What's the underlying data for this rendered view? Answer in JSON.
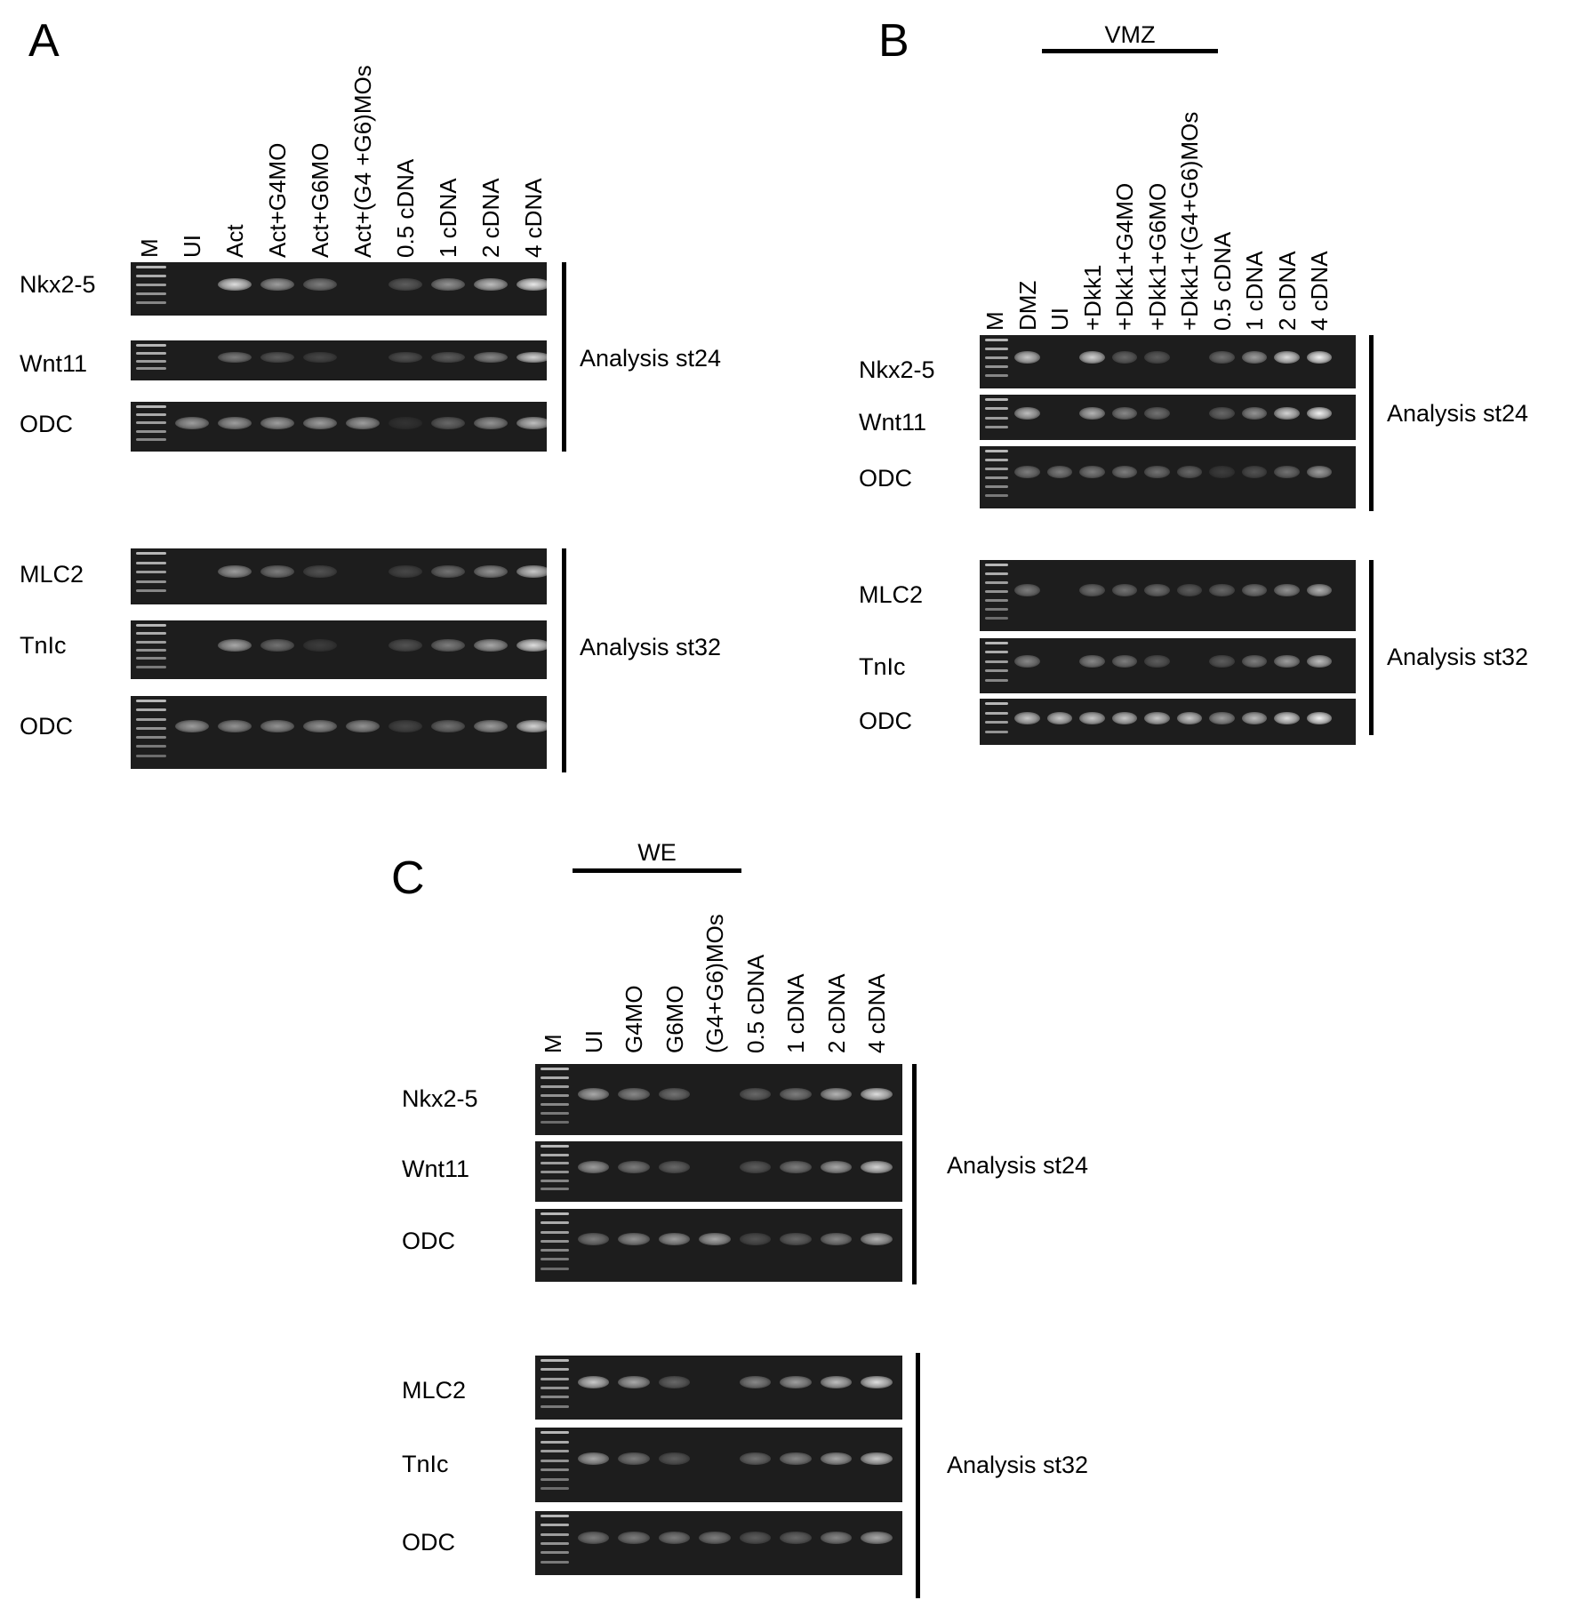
{
  "panels": [
    {
      "id": "A",
      "letter": "A",
      "group": null,
      "lanes": [
        "M",
        "UI",
        "Act",
        "Act+G4MO",
        "Act+G6MO",
        "Act+(G4 +G6)MOs",
        "0.5 cDNA",
        "1 cDNA",
        "2 cDNA",
        "4 cDNA"
      ],
      "sections": [
        {
          "analysis": "Analysis st24",
          "rows": [
            {
              "gene": "Nkx2-5",
              "band_intensity": [
                0,
                0.9,
                0.6,
                0.45,
                0,
                0.3,
                0.55,
                0.75,
                0.95
              ]
            },
            {
              "gene": "Wnt11",
              "band_intensity": [
                0,
                0.45,
                0.3,
                0.2,
                0,
                0.25,
                0.3,
                0.5,
                0.85
              ]
            },
            {
              "gene": "ODC",
              "band_intensity": [
                0.6,
                0.6,
                0.6,
                0.6,
                0.6,
                0.1,
                0.35,
                0.55,
                0.75
              ]
            }
          ]
        },
        {
          "analysis": "Analysis st32",
          "rows": [
            {
              "gene": "MLC2",
              "band_intensity": [
                0,
                0.6,
                0.45,
                0.25,
                0,
                0.2,
                0.4,
                0.55,
                0.8
              ]
            },
            {
              "gene": "TnIc",
              "band_intensity": [
                0,
                0.65,
                0.4,
                0.15,
                0,
                0.25,
                0.45,
                0.65,
                0.9
              ]
            },
            {
              "gene": "ODC",
              "band_intensity": [
                0.6,
                0.55,
                0.55,
                0.55,
                0.55,
                0.2,
                0.4,
                0.6,
                0.85
              ]
            }
          ]
        }
      ]
    },
    {
      "id": "B",
      "letter": "B",
      "group": {
        "label": "VMZ",
        "first_lane": 3,
        "last_lane": 6
      },
      "lanes": [
        "M",
        "DMZ",
        "UI",
        "+Dkk1",
        "+Dkk1+G4MO",
        "+Dkk1+G6MO",
        "+Dkk1+(G4+G6)MOs",
        "0.5 cDNA",
        "1 cDNA",
        "2 cDNA",
        "4 cDNA"
      ],
      "sections": [
        {
          "analysis": "Analysis st24",
          "rows": [
            {
              "gene": "Nkx2-5",
              "band_intensity": [
                0.8,
                0,
                0.85,
                0.35,
                0.3,
                0,
                0.4,
                0.6,
                0.9,
                1
              ]
            },
            {
              "gene": "Wnt11",
              "band_intensity": [
                0.75,
                0,
                0.7,
                0.5,
                0.4,
                0,
                0.35,
                0.55,
                0.85,
                1
              ]
            },
            {
              "gene": "ODC",
              "band_intensity": [
                0.45,
                0.45,
                0.45,
                0.45,
                0.4,
                0.35,
                0.15,
                0.25,
                0.4,
                0.6
              ]
            }
          ]
        },
        {
          "analysis": "Analysis st32",
          "rows": [
            {
              "gene": "MLC2",
              "band_intensity": [
                0.45,
                0,
                0.4,
                0.4,
                0.4,
                0.3,
                0.35,
                0.45,
                0.55,
                0.7
              ]
            },
            {
              "gene": "TnIc",
              "band_intensity": [
                0.5,
                0,
                0.5,
                0.45,
                0.3,
                0,
                0.3,
                0.45,
                0.6,
                0.75
              ]
            },
            {
              "gene": "ODC",
              "band_intensity": [
                0.8,
                0.8,
                0.8,
                0.8,
                0.8,
                0.8,
                0.6,
                0.75,
                0.9,
                1
              ]
            }
          ]
        }
      ]
    },
    {
      "id": "C",
      "letter": "C",
      "group": {
        "label": "WE",
        "first_lane": 1,
        "last_lane": 4
      },
      "lanes": [
        "M",
        "UI",
        "G4MO",
        "G6MO",
        "(G4+G6)MOs",
        "0.5 cDNA",
        "1 cDNA",
        "2 cDNA",
        "4 cDNA"
      ],
      "sections": [
        {
          "analysis": "Analysis st24",
          "rows": [
            {
              "gene": "Nkx2-5",
              "band_intensity": [
                0.65,
                0.5,
                0.4,
                0,
                0.35,
                0.45,
                0.7,
                0.9
              ]
            },
            {
              "gene": "Wnt11",
              "band_intensity": [
                0.6,
                0.45,
                0.35,
                0,
                0.3,
                0.45,
                0.65,
                0.85
              ]
            },
            {
              "gene": "ODC",
              "band_intensity": [
                0.45,
                0.55,
                0.6,
                0.65,
                0.25,
                0.35,
                0.5,
                0.7
              ]
            }
          ]
        },
        {
          "analysis": "Analysis st32",
          "rows": [
            {
              "gene": "MLC2",
              "band_intensity": [
                0.8,
                0.65,
                0.35,
                0,
                0.5,
                0.6,
                0.75,
                0.9
              ]
            },
            {
              "gene": "TnIc",
              "band_intensity": [
                0.65,
                0.45,
                0.3,
                0,
                0.4,
                0.5,
                0.65,
                0.8
              ]
            },
            {
              "gene": "ODC",
              "band_intensity": [
                0.45,
                0.45,
                0.45,
                0.45,
                0.3,
                0.35,
                0.5,
                0.65
              ]
            }
          ]
        }
      ]
    }
  ]
}
